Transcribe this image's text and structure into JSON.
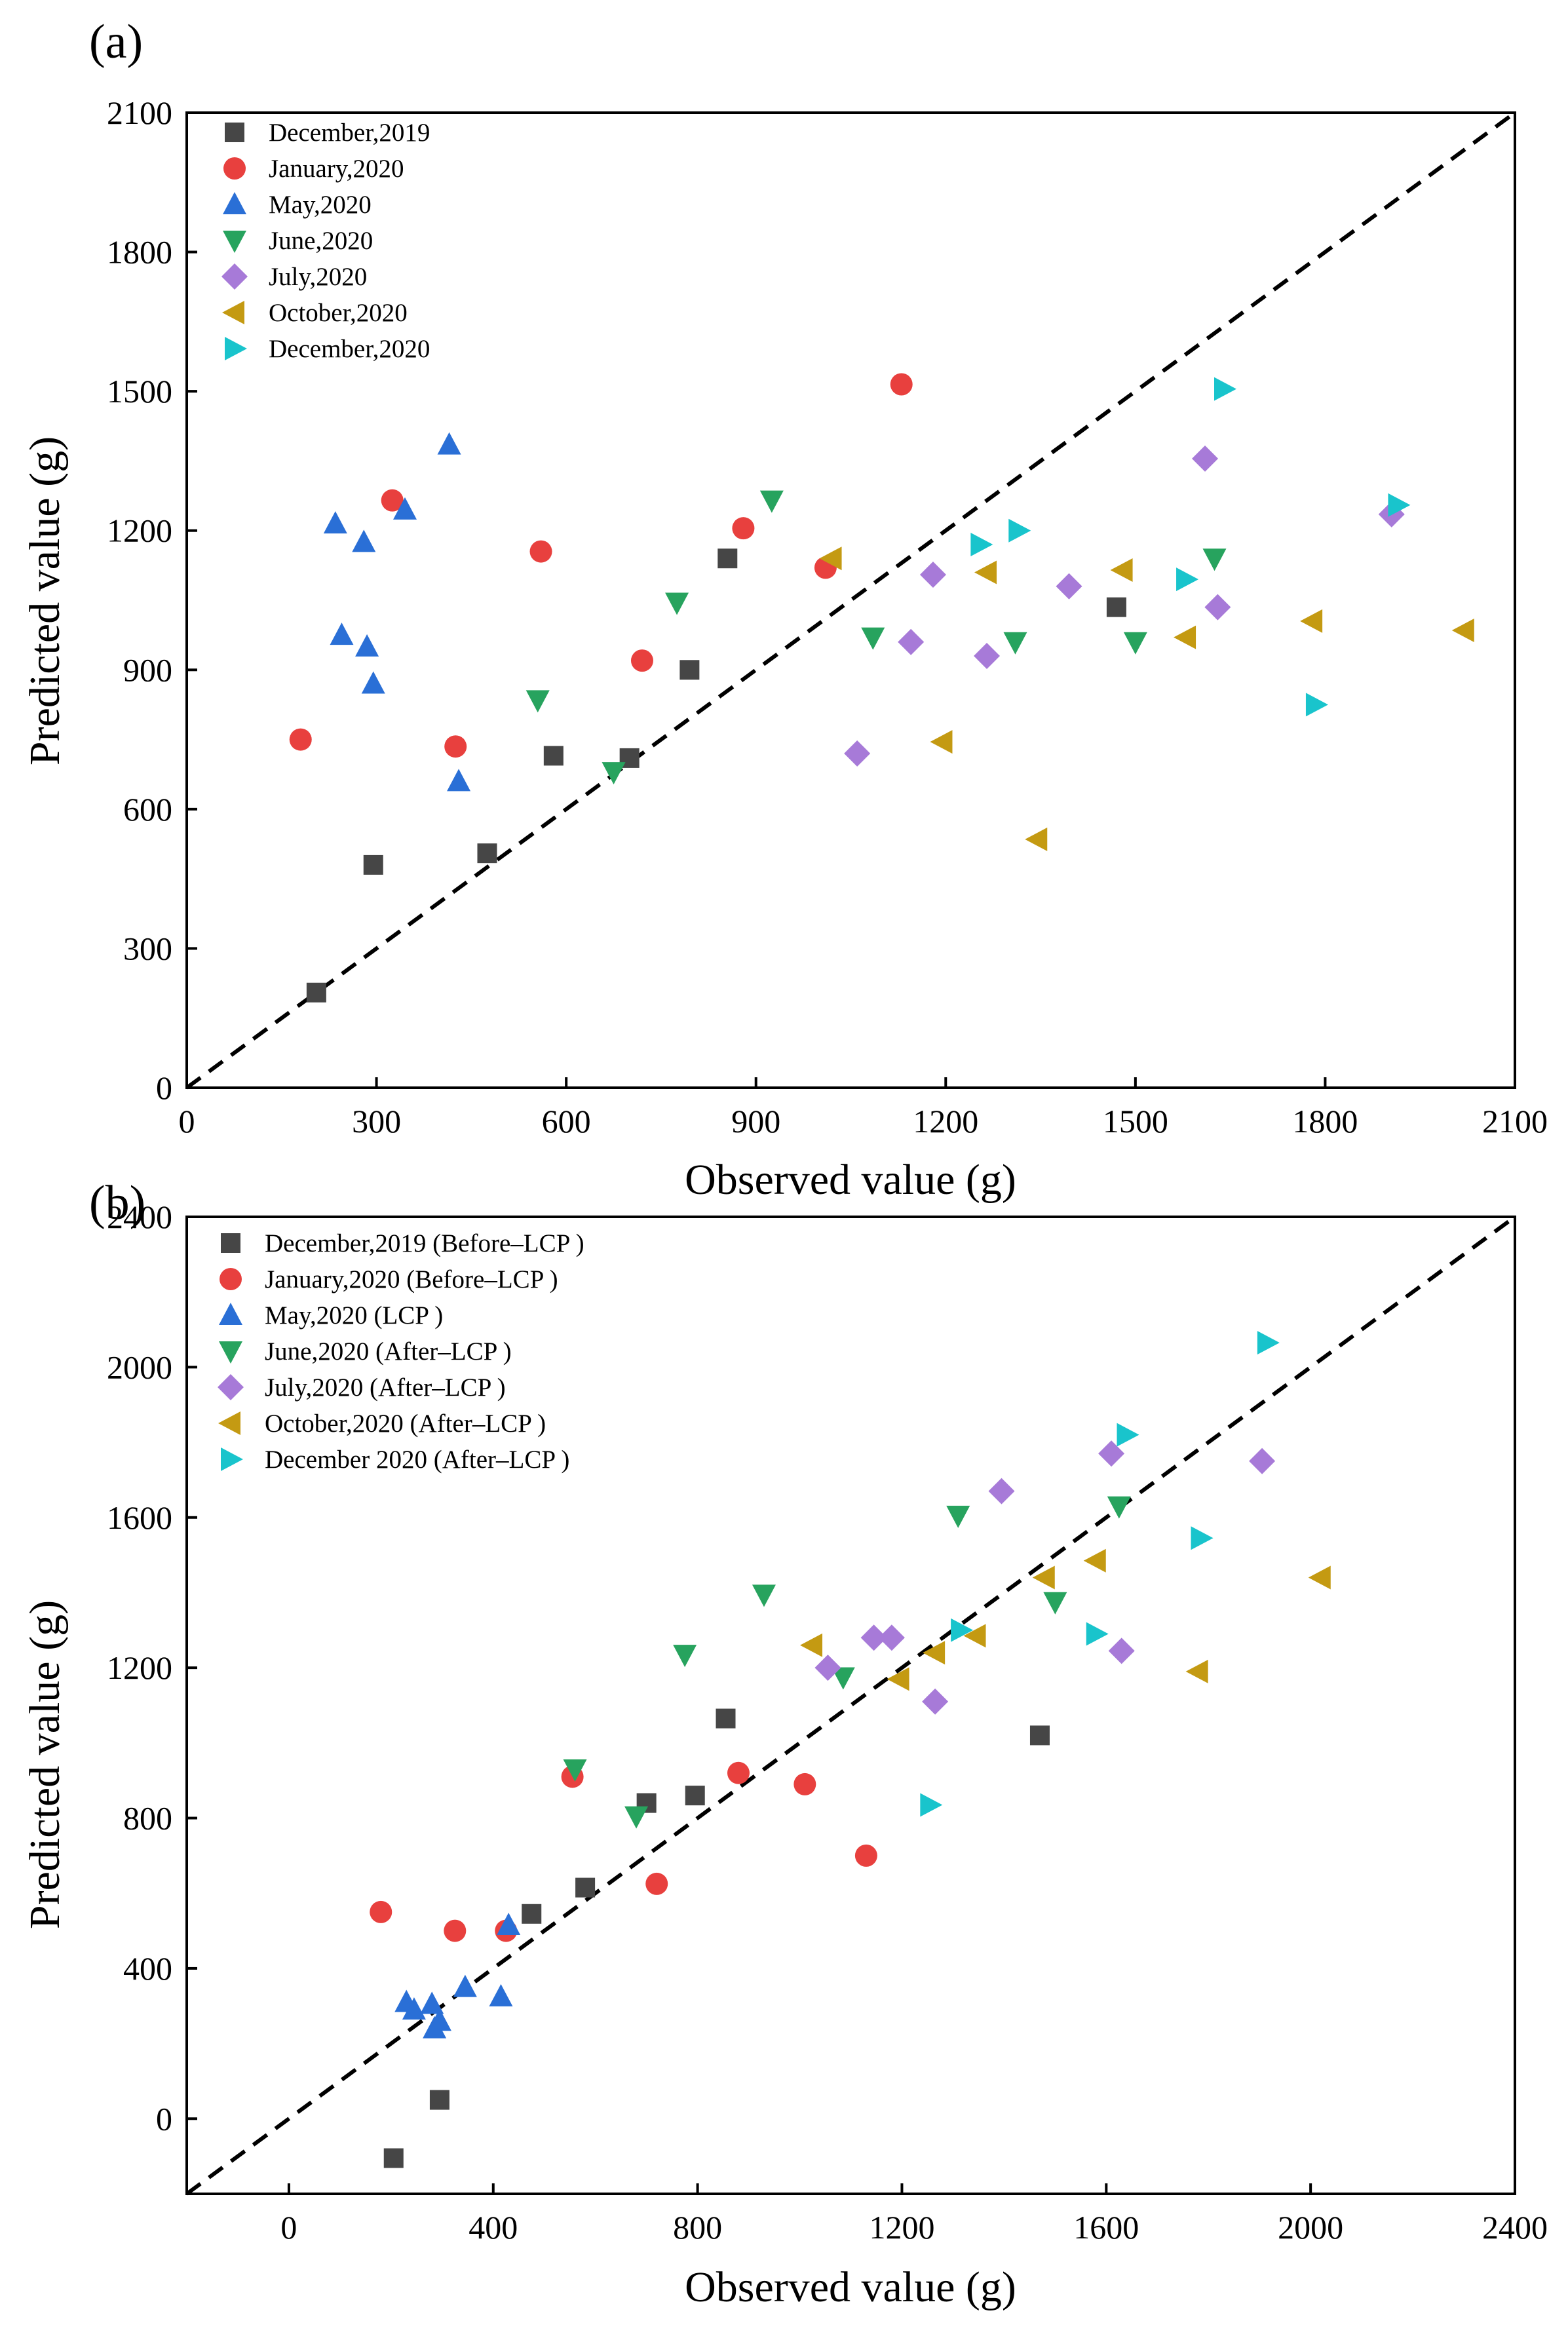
{
  "colors": {
    "dec2019": "#464646",
    "jan2020": "#e8403e",
    "may2020": "#2a6fd6",
    "jun2020": "#27a35e",
    "jul2020": "#a77ad8",
    "oct2020": "#c49a12",
    "dec2020": "#19c4cc",
    "refline": "#000000"
  },
  "chart_data": [
    {
      "type": "scatter",
      "panel_label": "(a)",
      "xlabel": "Observed value (g)",
      "ylabel": "Predicted value (g)",
      "xlim": [
        0,
        2100
      ],
      "ylim": [
        0,
        2100
      ],
      "xticks": [
        0,
        300,
        600,
        900,
        1200,
        1500,
        1800,
        2100
      ],
      "yticks": [
        0,
        300,
        600,
        900,
        1200,
        1500,
        1800,
        2100
      ],
      "reference_line": "y = x (dashed)",
      "legend_position": "top-left",
      "series": [
        {
          "name": "December,2019",
          "marker": "square",
          "color_key": "dec2019",
          "points": [
            [
              205,
              205
            ],
            [
              295,
              480
            ],
            [
              475,
              505
            ],
            [
              580,
              715
            ],
            [
              700,
              710
            ],
            [
              795,
              900
            ],
            [
              855,
              1140
            ],
            [
              1470,
              1035
            ]
          ]
        },
        {
          "name": "January,2020",
          "marker": "circle",
          "color_key": "jan2020",
          "points": [
            [
              180,
              750
            ],
            [
              325,
              1265
            ],
            [
              425,
              735
            ],
            [
              560,
              1155
            ],
            [
              720,
              920
            ],
            [
              880,
              1205
            ],
            [
              1010,
              1120
            ],
            [
              1130,
              1515
            ]
          ]
        },
        {
          "name": "May,2020",
          "marker": "triangle-up",
          "color_key": "may2020",
          "points": [
            [
              235,
              1215
            ],
            [
              245,
              975
            ],
            [
              280,
              1175
            ],
            [
              285,
              950
            ],
            [
              295,
              870
            ],
            [
              345,
              1245
            ],
            [
              415,
              1385
            ],
            [
              430,
              660
            ]
          ]
        },
        {
          "name": "June,2020",
          "marker": "triangle-down",
          "color_key": "jun2020",
          "points": [
            [
              555,
              835
            ],
            [
              675,
              680
            ],
            [
              775,
              1045
            ],
            [
              925,
              1265
            ],
            [
              1085,
              970
            ],
            [
              1310,
              960
            ],
            [
              1500,
              960
            ],
            [
              1625,
              1140
            ]
          ]
        },
        {
          "name": "July,2020",
          "marker": "diamond",
          "color_key": "jul2020",
          "points": [
            [
              1060,
              720
            ],
            [
              1145,
              960
            ],
            [
              1180,
              1105
            ],
            [
              1265,
              930
            ],
            [
              1395,
              1080
            ],
            [
              1610,
              1355
            ],
            [
              1630,
              1035
            ],
            [
              1905,
              1235
            ]
          ]
        },
        {
          "name": "October,2020",
          "marker": "triangle-left",
          "color_key": "oct2020",
          "points": [
            [
              1020,
              1140
            ],
            [
              1195,
              745
            ],
            [
              1265,
              1110
            ],
            [
              1345,
              535
            ],
            [
              1480,
              1115
            ],
            [
              1580,
              970
            ],
            [
              1780,
              1005
            ],
            [
              2020,
              985
            ]
          ]
        },
        {
          "name": "December,2020",
          "marker": "triangle-right",
          "color_key": "dec2020",
          "points": [
            [
              1255,
              1170
            ],
            [
              1315,
              1200
            ],
            [
              1580,
              1095
            ],
            [
              1640,
              1505
            ],
            [
              1785,
              825
            ],
            [
              1915,
              1255
            ]
          ]
        }
      ]
    },
    {
      "type": "scatter",
      "panel_label": "(b)",
      "xlabel": "Observed value (g)",
      "ylabel": "Predicted value (g)",
      "xlim": [
        -200,
        2400
      ],
      "ylim": [
        -200,
        2400
      ],
      "xticks": [
        0,
        400,
        800,
        1200,
        1600,
        2000,
        2400
      ],
      "yticks": [
        0,
        400,
        800,
        1200,
        1600,
        2000,
        2400
      ],
      "reference_line": "y = x (dashed)",
      "legend_position": "top-left",
      "series": [
        {
          "name": "December,2019 (Before–LCP )",
          "marker": "square",
          "color_key": "dec2019",
          "points": [
            [
              205,
              -105
            ],
            [
              295,
              50
            ],
            [
              475,
              545
            ],
            [
              580,
              615
            ],
            [
              700,
              840
            ],
            [
              795,
              860
            ],
            [
              855,
              1065
            ],
            [
              1470,
              1020
            ]
          ]
        },
        {
          "name": "January,2020 (Before–LCP )",
          "marker": "circle",
          "color_key": "jan2020",
          "points": [
            [
              180,
              550
            ],
            [
              325,
              500
            ],
            [
              425,
              500
            ],
            [
              555,
              910
            ],
            [
              720,
              625
            ],
            [
              880,
              920
            ],
            [
              1010,
              890
            ],
            [
              1130,
              700
            ]
          ]
        },
        {
          "name": "May,2020 (LCP )",
          "marker": "triangle-up",
          "color_key": "may2020",
          "points": [
            [
              230,
              310
            ],
            [
              245,
              290
            ],
            [
              280,
              305
            ],
            [
              285,
              240
            ],
            [
              295,
              260
            ],
            [
              345,
              350
            ],
            [
              415,
              325
            ],
            [
              430,
              515
            ]
          ]
        },
        {
          "name": "June,2020 (After–LCP )",
          "marker": "triangle-down",
          "color_key": "jun2020",
          "points": [
            [
              560,
              930
            ],
            [
              680,
              805
            ],
            [
              775,
              1235
            ],
            [
              930,
              1395
            ],
            [
              1085,
              1175
            ],
            [
              1310,
              1605
            ],
            [
              1500,
              1375
            ],
            [
              1625,
              1630
            ]
          ]
        },
        {
          "name": "July,2020 (After–LCP )",
          "marker": "diamond",
          "color_key": "jul2020",
          "points": [
            [
              1055,
              1200
            ],
            [
              1145,
              1280
            ],
            [
              1180,
              1280
            ],
            [
              1265,
              1110
            ],
            [
              1395,
              1670
            ],
            [
              1610,
              1770
            ],
            [
              1630,
              1245
            ],
            [
              1905,
              1750
            ]
          ]
        },
        {
          "name": "October,2020 (After–LCP )",
          "marker": "triangle-left",
          "color_key": "oct2020",
          "points": [
            [
              1025,
              1260
            ],
            [
              1195,
              1170
            ],
            [
              1265,
              1240
            ],
            [
              1345,
              1285
            ],
            [
              1480,
              1440
            ],
            [
              1580,
              1485
            ],
            [
              1780,
              1190
            ],
            [
              2020,
              1440
            ]
          ]
        },
        {
          "name": "December 2020 (After–LCP )",
          "marker": "triangle-right",
          "color_key": "dec2020",
          "points": [
            [
              1255,
              835
            ],
            [
              1315,
              1300
            ],
            [
              1580,
              1290
            ],
            [
              1640,
              1820
            ],
            [
              1785,
              1545
            ],
            [
              1915,
              2065
            ]
          ]
        }
      ]
    }
  ]
}
